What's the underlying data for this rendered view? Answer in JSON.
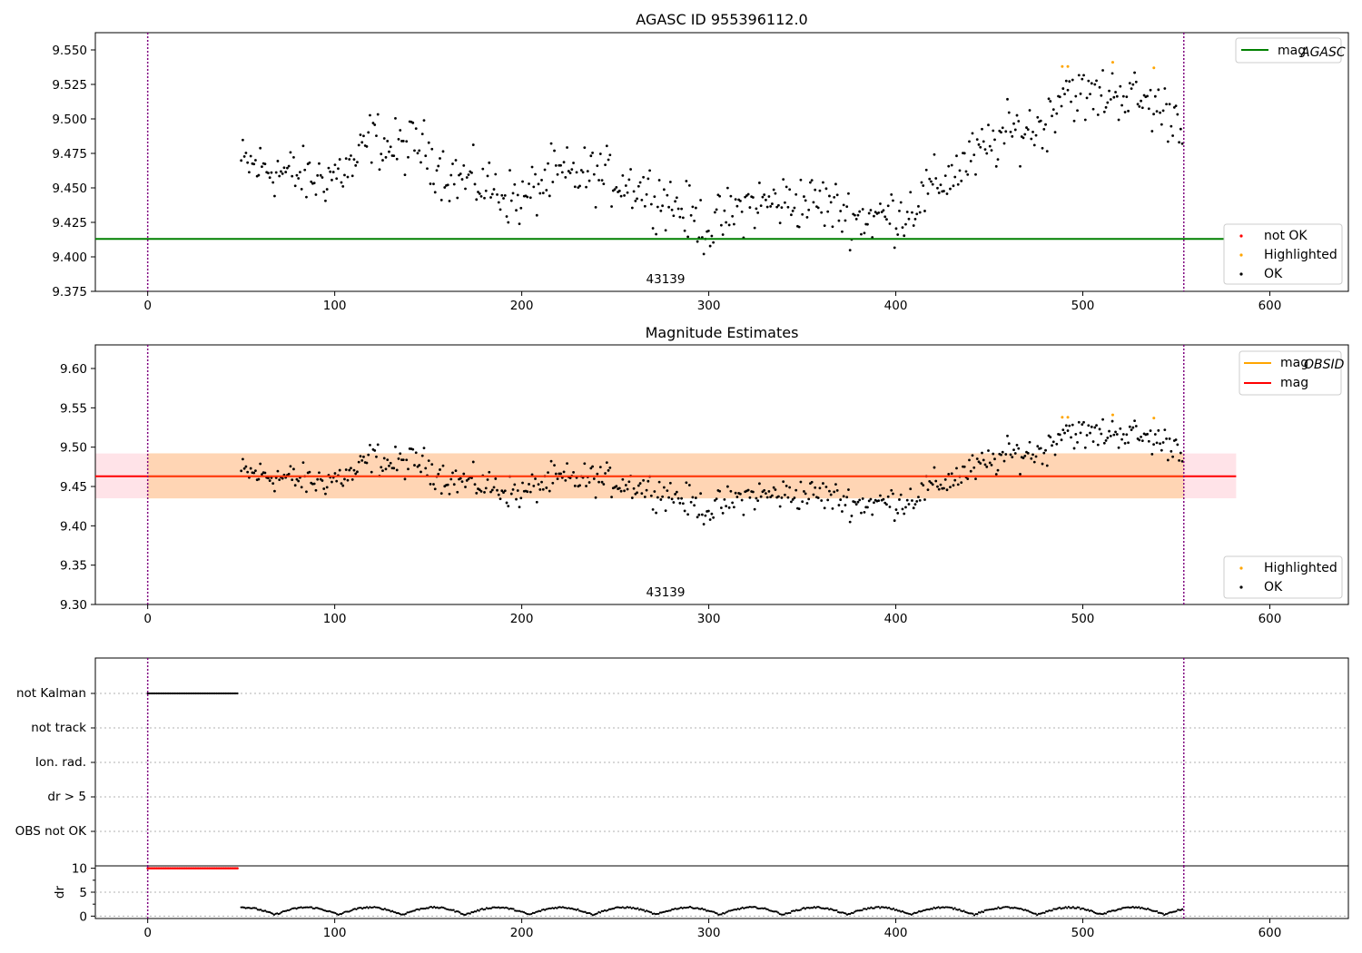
{
  "figure": {
    "colors": {
      "ok": "#000000",
      "not_ok": "#ff0000",
      "highlighted": "#ffa500",
      "mag_agasc": "#008000",
      "mag_obsid": "#ffa500",
      "mag": "#ff0000",
      "obs_line": "#800080"
    },
    "obs_label": "43139",
    "obs_boundaries": [
      0,
      554
    ]
  },
  "chart_data": [
    {
      "type": "scatter",
      "title": "AGASC ID 955396112.0",
      "xlim": [
        -28,
        642
      ],
      "ylim": [
        9.375,
        9.5625
      ],
      "xticks": [
        0,
        100,
        200,
        300,
        400,
        500,
        600
      ],
      "yticks": [
        "9.375",
        "9.400",
        "9.425",
        "9.450",
        "9.475",
        "9.500",
        "9.525",
        "9.550"
      ],
      "mag_agasc": 9.413,
      "legend_lines": [
        {
          "label": "mag",
          "subscript": "AGASC",
          "color": "#008000"
        }
      ],
      "legend_points": [
        {
          "label": "not OK",
          "color": "#ff0000"
        },
        {
          "label": "Highlighted",
          "color": "#ffa500"
        },
        {
          "label": "OK",
          "color": "#000000"
        }
      ],
      "trend": {
        "x": [
          50,
          70,
          90,
          110,
          120,
          130,
          145,
          160,
          180,
          200,
          215,
          240,
          260,
          280,
          300,
          320,
          340,
          360,
          380,
          395,
          405,
          420,
          440,
          460,
          480,
          490,
          500,
          520,
          540,
          554
        ],
        "y": [
          9.468,
          9.462,
          9.456,
          9.465,
          9.488,
          9.478,
          9.482,
          9.46,
          9.452,
          9.44,
          9.458,
          9.46,
          9.452,
          9.44,
          9.42,
          9.438,
          9.44,
          9.44,
          9.428,
          9.43,
          9.432,
          9.45,
          9.47,
          9.49,
          9.495,
          9.525,
          9.515,
          9.52,
          9.508,
          9.5
        ]
      },
      "highlighted_points": [
        [
          489,
          9.538
        ],
        [
          492,
          9.538
        ],
        [
          516,
          9.541
        ],
        [
          538,
          9.537
        ]
      ]
    },
    {
      "type": "scatter",
      "title": "Magnitude Estimates",
      "xlim": [
        -28,
        642
      ],
      "ylim": [
        9.3,
        9.63
      ],
      "xticks": [
        0,
        100,
        200,
        300,
        400,
        500,
        600
      ],
      "yticks": [
        "9.30",
        "9.35",
        "9.40",
        "9.45",
        "9.50",
        "9.55",
        "9.60"
      ],
      "mag": 9.463,
      "mag_band": [
        9.435,
        9.492
      ],
      "mag_obsid_band": [
        9.435,
        9.492
      ],
      "legend_lines": [
        {
          "label": "mag",
          "subscript": "OBSID",
          "color": "#ffa500"
        },
        {
          "label": "mag",
          "subscript": "",
          "color": "#ff0000"
        }
      ],
      "legend_points": [
        {
          "label": "Highlighted",
          "color": "#ffa500"
        },
        {
          "label": "OK",
          "color": "#000000"
        }
      ],
      "highlighted_points": [
        [
          489,
          9.538
        ],
        [
          492,
          9.538
        ],
        [
          516,
          9.541
        ],
        [
          538,
          9.537
        ]
      ]
    },
    {
      "type": "scatter",
      "title": "",
      "categories": [
        "not Kalman",
        "not track",
        "Ion. rad.",
        "dr > 5",
        "OBS not OK"
      ],
      "not_kalman_range": [
        0,
        48
      ]
    },
    {
      "type": "scatter",
      "title": "",
      "ylabel": "dr",
      "ylim": [
        -0.5,
        10.5
      ],
      "yticks": [
        "0",
        "5",
        "10"
      ],
      "xticks": [
        0,
        100,
        200,
        300,
        400,
        500,
        600
      ],
      "clipped_range": [
        0,
        48
      ],
      "clipped_value": 10
    }
  ]
}
